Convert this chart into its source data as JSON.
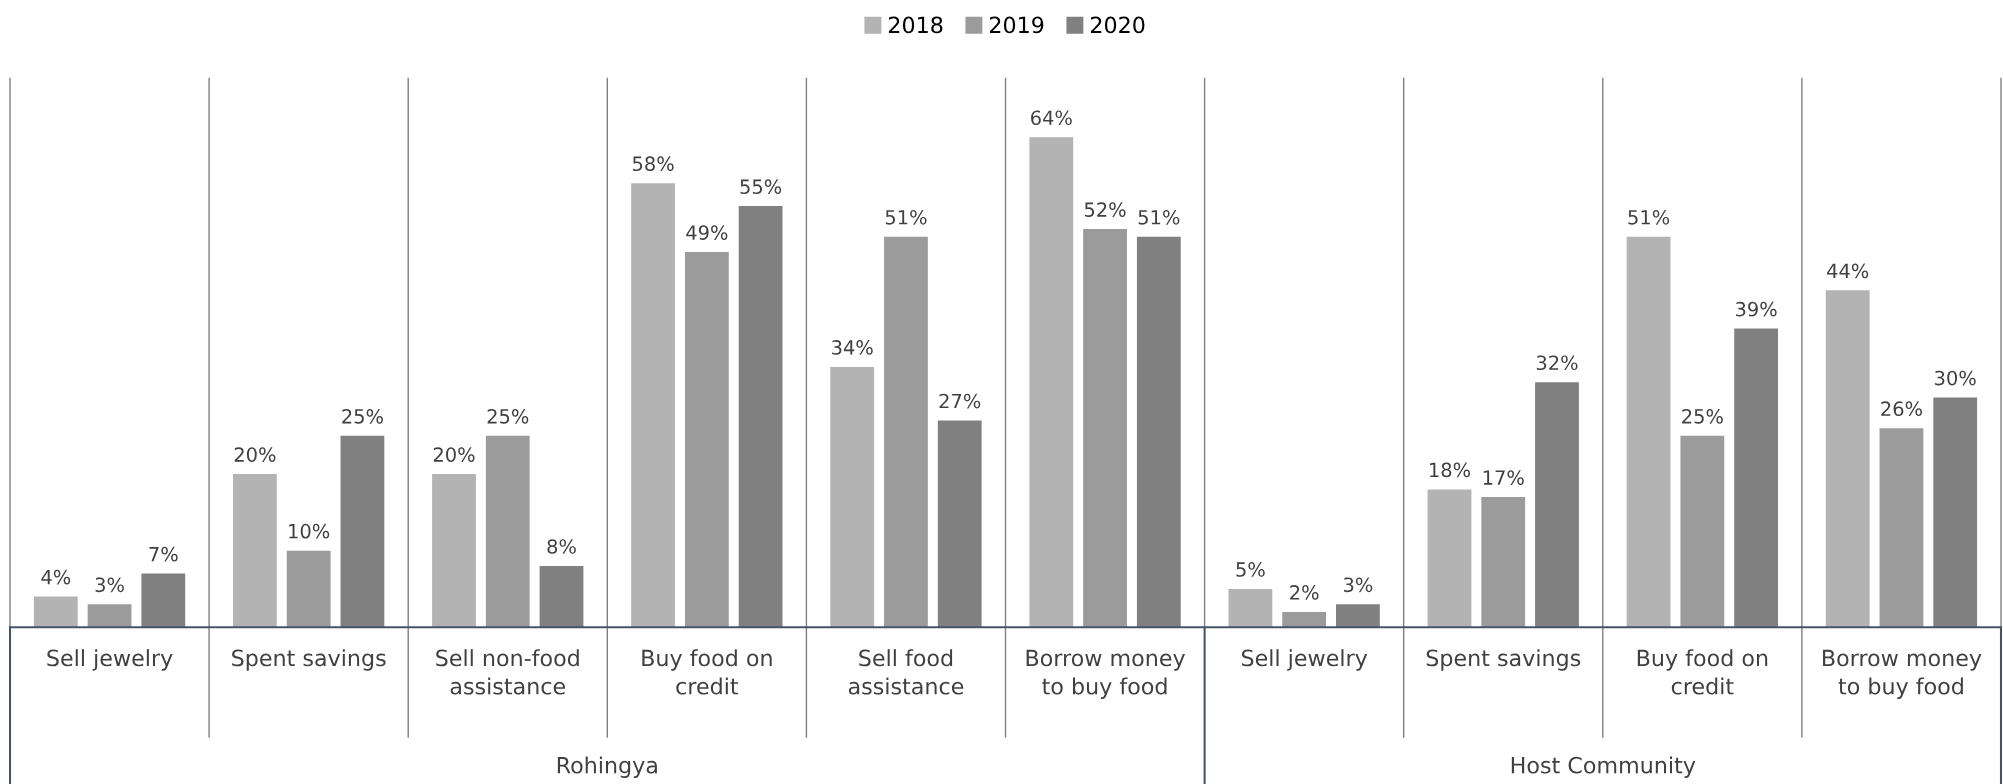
{
  "chart_data": {
    "type": "bar",
    "categories": [
      "Sell jewelry",
      "Spent savings",
      "Sell non-food\nassistance",
      "Buy food on\ncredit",
      "Sell food\nassistance",
      "Borrow money\nto buy food",
      "Sell jewelry",
      "Spent savings",
      "Buy food on\ncredit",
      "Borrow money\nto buy food"
    ],
    "series": [
      {
        "name": "2018",
        "color": "#b3b3b3",
        "values": [
          4,
          20,
          20,
          58,
          34,
          64,
          5,
          18,
          51,
          44
        ],
        "value_labels": [
          "4%",
          "20%",
          "20%",
          "58%",
          "34%",
          "64%",
          "5%",
          "18%",
          "51%",
          "44%"
        ]
      },
      {
        "name": "2019",
        "color": "#9b9b9b",
        "values": [
          3,
          10,
          25,
          49,
          51,
          52,
          2,
          17,
          25,
          26
        ],
        "value_labels": [
          "3%",
          "10%",
          "25%",
          "49%",
          "51%",
          "52%",
          "2%",
          "17%",
          "25%",
          "26%"
        ]
      },
      {
        "name": "2020",
        "color": "#808080",
        "values": [
          7,
          25,
          8,
          55,
          27,
          51,
          3,
          32,
          39,
          30
        ],
        "value_labels": [
          "7%",
          "25%",
          "8%",
          "55%",
          "27%",
          "51%",
          "3%",
          "32%",
          "39%",
          "30%"
        ]
      }
    ],
    "annotations": [
      "Rohingya",
      "Host Community"
    ],
    "legend": "top"
  }
}
